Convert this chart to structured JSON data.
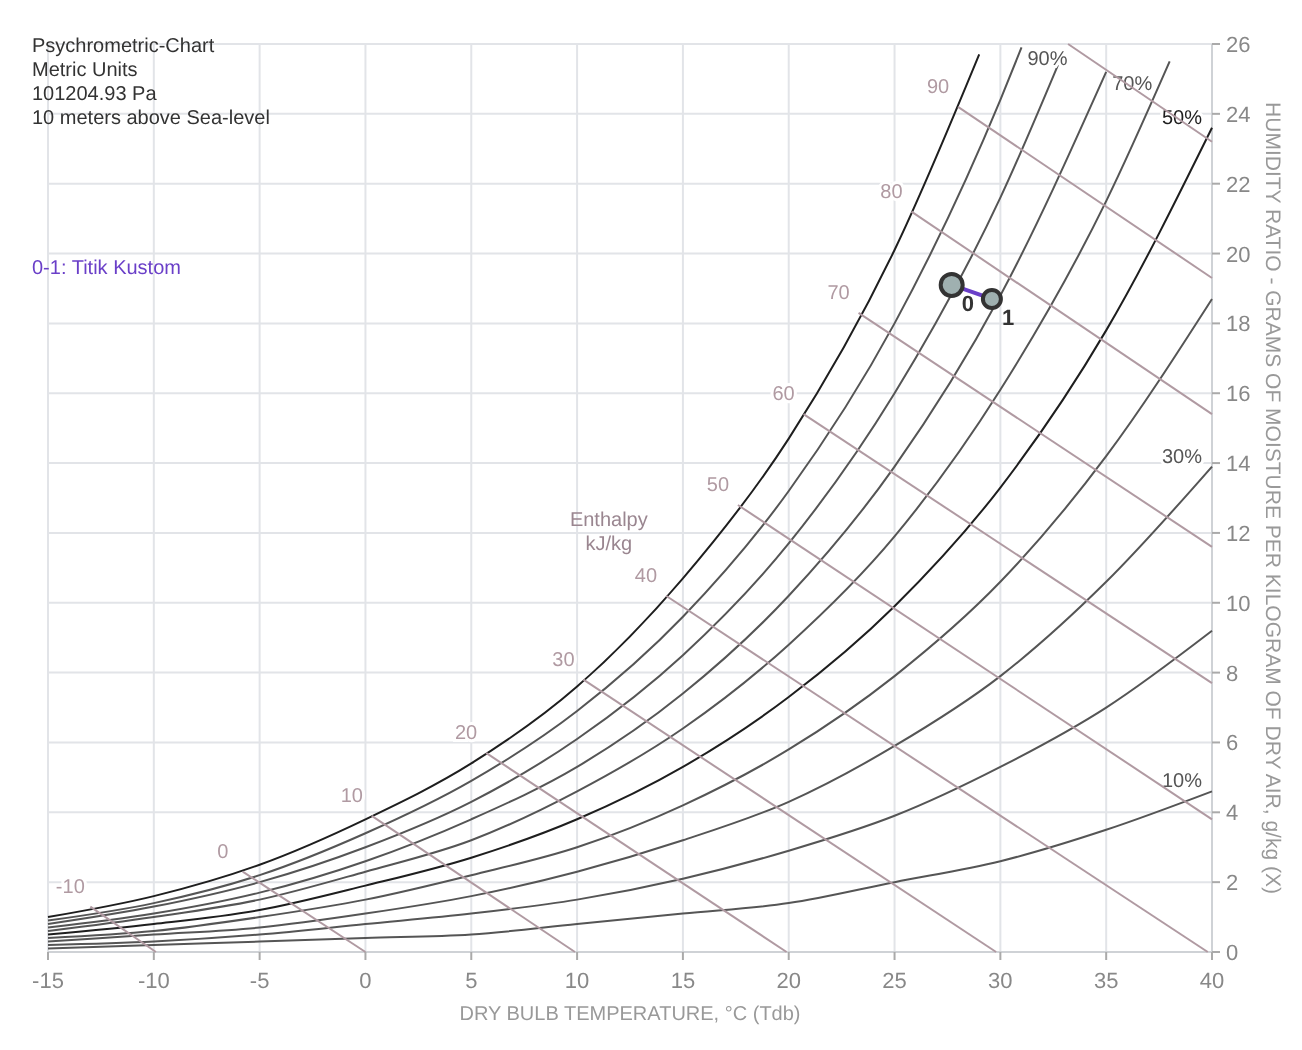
{
  "chart_data": {
    "type": "line",
    "xlabel": "DRY BULB TEMPERATURE, °C (Tdb)",
    "ylabel": "HUMIDITY RATIO - GRAMS OF MOISTURE PER KILOGRAM OF DRY AIR, g/kg (X)",
    "xlim": [
      -15,
      40
    ],
    "xticks": [
      -15,
      -10,
      -5,
      0,
      5,
      10,
      15,
      20,
      25,
      30,
      35,
      40
    ],
    "ylim": [
      0,
      26
    ],
    "yticks": [
      0,
      2,
      4,
      6,
      8,
      10,
      12,
      14,
      16,
      18,
      20,
      22,
      24,
      26
    ],
    "grid": true,
    "legend": "top left",
    "marker": "none",
    "series": [
      {
        "name": "10%",
        "color": "#555555",
        "x": [
          -15,
          -10,
          -5,
          0,
          5,
          10,
          15,
          20,
          25,
          30,
          35,
          40
        ],
        "values": [
          0.1,
          0.2,
          0.3,
          0.4,
          0.5,
          0.8,
          1.1,
          1.4,
          2.0,
          2.6,
          3.5,
          4.6
        ]
      },
      {
        "color": "#555555",
        "x": [
          -15,
          -10,
          -5,
          0,
          5,
          10,
          15,
          20,
          25,
          30,
          35,
          40
        ],
        "values": [
          0.2,
          0.3,
          0.5,
          0.8,
          1.1,
          1.5,
          2.1,
          2.9,
          3.9,
          5.3,
          7.0,
          9.2
        ]
      },
      {
        "name": "30%",
        "color": "#555555",
        "x": [
          -15,
          -10,
          -5,
          0,
          5,
          10,
          15,
          20,
          25,
          30,
          35,
          40
        ],
        "values": [
          0.3,
          0.5,
          0.7,
          1.1,
          1.6,
          2.3,
          3.2,
          4.3,
          5.9,
          7.9,
          10.6,
          13.9
        ]
      },
      {
        "color": "#555555",
        "x": [
          -15,
          -10,
          -5,
          0,
          5,
          10,
          15,
          20,
          25,
          30,
          35,
          40
        ],
        "values": [
          0.4,
          0.6,
          1.0,
          1.5,
          2.2,
          3.0,
          4.2,
          5.8,
          7.9,
          10.6,
          14.2,
          18.7
        ]
      },
      {
        "name": "50%",
        "color": "#1e1e1e",
        "x": [
          -15,
          -10,
          -5,
          0,
          5,
          10,
          15,
          20,
          25,
          30,
          35,
          40
        ],
        "values": [
          0.5,
          0.8,
          1.2,
          1.9,
          2.7,
          3.8,
          5.3,
          7.3,
          9.9,
          13.3,
          17.8,
          23.6
        ]
      },
      {
        "color": "#555555",
        "x": [
          -15,
          -10,
          -5,
          0,
          5,
          10,
          15,
          20,
          25,
          30,
          35,
          38
        ],
        "values": [
          0.6,
          1.0,
          1.5,
          2.3,
          3.2,
          4.6,
          6.4,
          8.8,
          11.9,
          16.1,
          21.5,
          25.5
        ]
      },
      {
        "name": "70%",
        "color": "#555555",
        "x": [
          -15,
          -10,
          -5,
          0,
          5,
          10,
          15,
          20,
          25,
          30,
          35
        ],
        "values": [
          0.7,
          1.1,
          1.7,
          2.6,
          3.8,
          5.3,
          7.4,
          10.2,
          13.9,
          18.8,
          25.2
        ]
      },
      {
        "color": "#555555",
        "x": [
          -15,
          -10,
          -5,
          0,
          5,
          10,
          15,
          20,
          25,
          30,
          33
        ],
        "values": [
          0.8,
          1.3,
          2.0,
          3.0,
          4.3,
          6.1,
          8.5,
          11.7,
          16.0,
          21.6,
          25.8
        ]
      },
      {
        "name": "90%",
        "color": "#555555",
        "x": [
          -15,
          -10,
          -5,
          0,
          5,
          10,
          15,
          20,
          25,
          30,
          31
        ],
        "values": [
          0.9,
          1.4,
          2.2,
          3.4,
          4.9,
          6.9,
          9.6,
          13.2,
          18.0,
          24.4,
          25.9
        ]
      },
      {
        "color": "#1e1e1e",
        "x": [
          -15,
          -10,
          -5,
          0,
          5,
          10,
          15,
          20,
          25,
          29
        ],
        "values": [
          1.0,
          1.6,
          2.5,
          3.8,
          5.4,
          7.6,
          10.7,
          14.7,
          20.1,
          25.7
        ]
      },
      {
        "name": "-10",
        "color": "#b09aa2",
        "x": [
          -13.0,
          -9.9
        ],
        "values": [
          1.3,
          0
        ]
      },
      {
        "name": "0",
        "color": "#b09aa2",
        "x": [
          -5.8,
          0
        ],
        "values": [
          2.3,
          0
        ]
      },
      {
        "name": "10",
        "color": "#b09aa2",
        "x": [
          0.3,
          9.9
        ],
        "values": [
          3.9,
          0
        ]
      },
      {
        "name": "20",
        "color": "#b09aa2",
        "x": [
          5.7,
          19.9
        ],
        "values": [
          5.7,
          0
        ]
      },
      {
        "name": "30",
        "color": "#b09aa2",
        "x": [
          10.3,
          29.8
        ],
        "values": [
          7.8,
          0
        ]
      },
      {
        "name": "40",
        "color": "#b09aa2",
        "x": [
          14.2,
          39.8
        ],
        "values": [
          10.2,
          0
        ]
      },
      {
        "name": "50",
        "color": "#b09aa2",
        "x": [
          17.6,
          40
        ],
        "values": [
          12.8,
          3.8
        ]
      },
      {
        "name": "60",
        "color": "#b09aa2",
        "x": [
          20.7,
          40
        ],
        "values": [
          15.4,
          7.7
        ]
      },
      {
        "name": "70",
        "color": "#b09aa2",
        "x": [
          23.3,
          40
        ],
        "values": [
          18.3,
          11.6
        ]
      },
      {
        "name": "80",
        "color": "#b09aa2",
        "x": [
          25.8,
          40
        ],
        "values": [
          21.2,
          15.4
        ]
      },
      {
        "name": "90",
        "color": "#b09aa2",
        "x": [
          28.0,
          40
        ],
        "values": [
          24.2,
          19.3
        ]
      },
      {
        "color": "#b09aa2",
        "x": [
          33.2,
          40
        ],
        "values": [
          26,
          23.2
        ]
      },
      {
        "name": "0-1: Titik Kustom",
        "color": "#6a3fc8",
        "x": [
          27.7,
          29.6
        ],
        "values": [
          19.1,
          18.7
        ],
        "marker": "circle"
      }
    ],
    "annotations": [
      "Psychrometric-Chart",
      "Metric Units",
      "101204.93 Pa",
      "10 meters above Sea-level",
      "Enthalpy\nkJ/kg",
      {
        "text": "0",
        "x": 27.7,
        "y": 19.1
      },
      {
        "text": "1",
        "x": 29.6,
        "y": 18.7
      }
    ]
  }
}
